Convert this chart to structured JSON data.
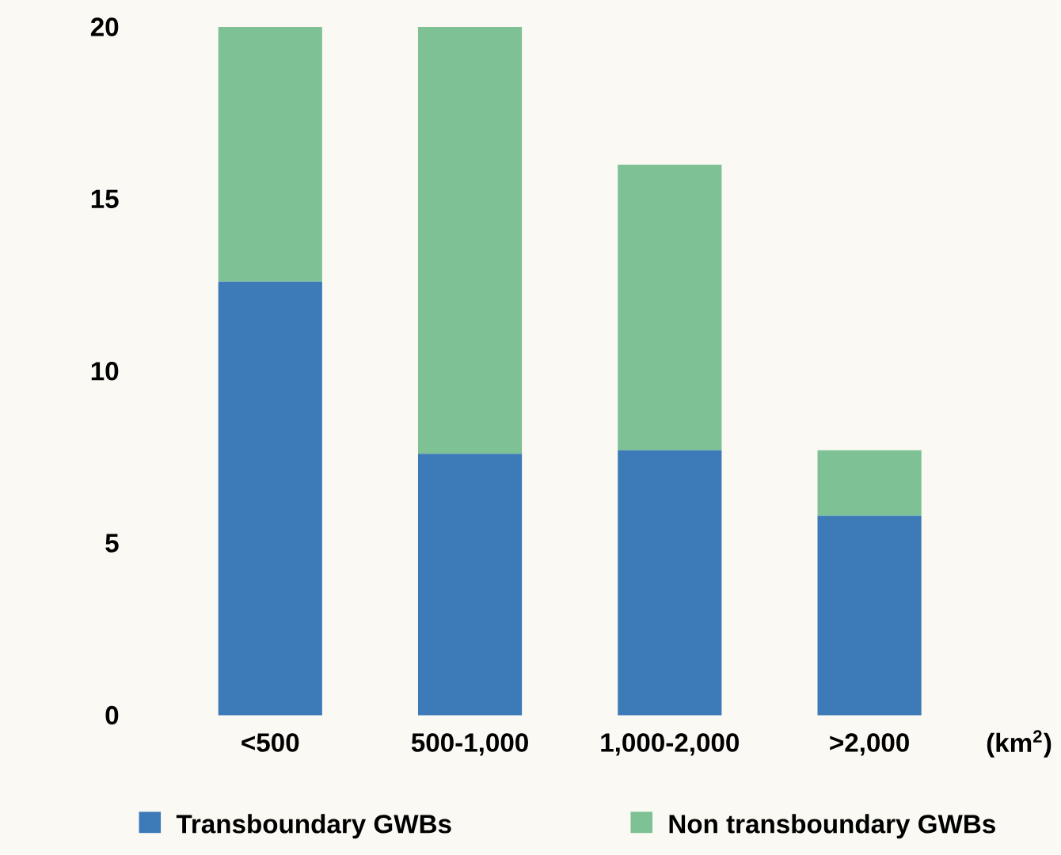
{
  "chart_data": {
    "type": "bar",
    "stacked": true,
    "categories": [
      "<500",
      "500-1,000",
      "1,000-2,000",
      ">2,000"
    ],
    "series": [
      {
        "name": "Transboundary GWBs",
        "color": "#3d7ab8",
        "values": [
          12.6,
          7.6,
          7.7,
          5.8
        ]
      },
      {
        "name": "Non transboundary GWBs",
        "color": "#7dc194",
        "values": [
          7.4,
          12.4,
          8.3,
          1.9
        ]
      }
    ],
    "ylim": [
      0,
      20
    ],
    "yticks": [
      0,
      5,
      10,
      15,
      20
    ],
    "grid": false,
    "legend": "bottom",
    "annotations": [
      "(km$^{2}$)"
    ]
  }
}
